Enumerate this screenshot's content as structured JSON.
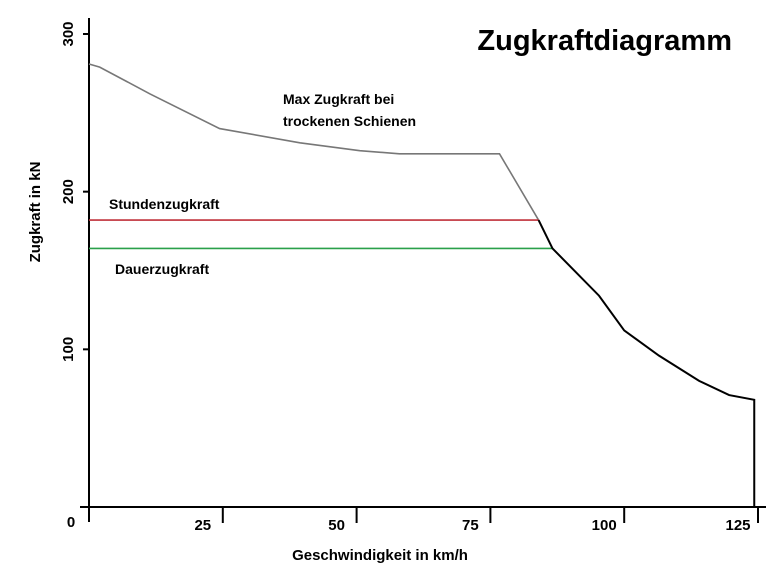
{
  "chart_data": {
    "type": "line",
    "title": "Zugkraftdiagramm",
    "x_label": "Geschwindigkeit in km/h",
    "y_label": "Zugkraft in kN",
    "xlim": [
      0,
      125
    ],
    "ylim": [
      0,
      300
    ],
    "xticks": [
      25,
      50,
      75,
      100,
      125
    ],
    "yticks": [
      0,
      100,
      200,
      300
    ],
    "series": [
      {
        "color": "#777777",
        "x": [
          0,
          2,
          11.4,
          24.4,
          39.4,
          50.6,
          58,
          76.7,
          84
        ],
        "values": [
          281,
          279,
          262,
          240,
          231,
          226,
          224,
          224,
          182
        ]
      },
      {
        "name": "Stundenzugkraft",
        "color": "#c0303a",
        "x": [
          0,
          84
        ],
        "values": [
          182,
          182
        ]
      },
      {
        "name": "Dauerzugkraft",
        "color": "#2aa04a",
        "x": [
          0,
          86.6
        ],
        "values": [
          164,
          164
        ]
      },
      {
        "color": "#000000",
        "x": [
          84,
          86.6,
          95.3,
          100,
          106.5,
          114,
          119.6,
          124.3,
          124.3
        ],
        "values": [
          182,
          164,
          134,
          112,
          96,
          80,
          71,
          68,
          0
        ]
      }
    ],
    "annotations": [
      "Max Zugkraft bei",
      "trockenen Schienen"
    ]
  }
}
